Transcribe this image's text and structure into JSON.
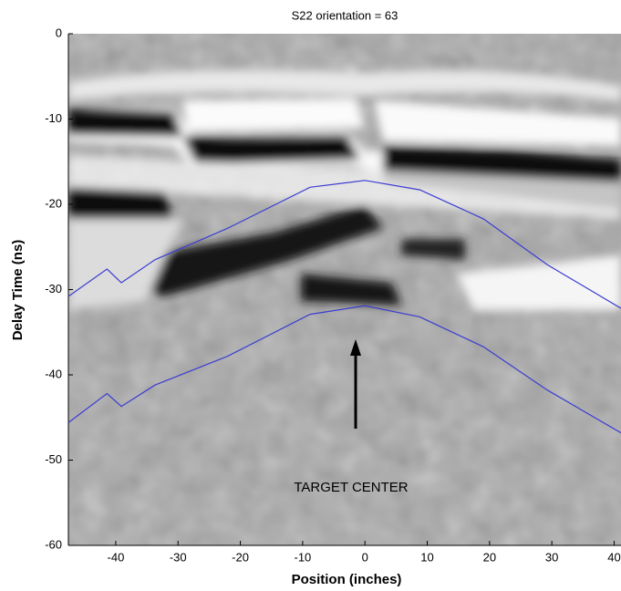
{
  "chart_data": {
    "type": "line",
    "title": "S22  orientation = 63",
    "x_label": "Position (inches)",
    "y_label": "Delay Time (ns)",
    "annotation": "TARGET CENTER",
    "xlim": [
      -47.6,
      41.1
    ],
    "ylim": [
      -60,
      0
    ],
    "xticks": [
      -40,
      -30,
      -20,
      -10,
      0,
      10,
      20,
      30,
      40
    ],
    "yticks": [
      0,
      -10,
      -20,
      -30,
      -40,
      -50,
      -60
    ],
    "series": [
      {
        "color": "#3c3cd2",
        "x": [
          -47.6,
          -41.4,
          -39.1,
          -33.7,
          -22.0,
          -8.8,
          0,
          8.8,
          19.0,
          29.3,
          41.1
        ],
        "values": [
          -30.8,
          -27.6,
          -29.2,
          -26.5,
          -22.8,
          -18.0,
          -17.2,
          -18.3,
          -21.7,
          -27.1,
          -32.2
        ]
      },
      {
        "color": "#3c3cd2",
        "x": [
          -47.6,
          -41.4,
          -39.1,
          -33.7,
          -22.0,
          -8.8,
          0,
          8.8,
          19.0,
          29.3,
          41.1
        ],
        "values": [
          -45.6,
          -42.2,
          -43.7,
          -41.2,
          -37.8,
          -32.9,
          -31.9,
          -33.2,
          -36.7,
          -41.8,
          -46.8
        ]
      }
    ]
  }
}
